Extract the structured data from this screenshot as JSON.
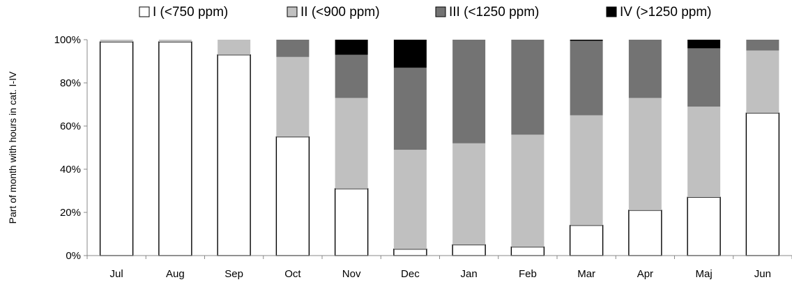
{
  "chart_data": {
    "type": "bar",
    "stacked": true,
    "normalized": true,
    "categories": [
      "Jul",
      "Aug",
      "Sep",
      "Oct",
      "Nov",
      "Dec",
      "Jan",
      "Feb",
      "Mar",
      "Apr",
      "Maj",
      "Jun"
    ],
    "series": [
      {
        "name": "I (<750 ppm)",
        "color": "#ffffff",
        "values": [
          99,
          99,
          93,
          55,
          31,
          3,
          5,
          4,
          14,
          21,
          27,
          66
        ]
      },
      {
        "name": "II (<900 ppm)",
        "color": "#c0c0c0",
        "values": [
          1,
          1,
          7,
          37,
          42,
          46,
          47,
          52,
          51,
          52,
          42,
          29
        ]
      },
      {
        "name": "III (<1250 ppm)",
        "color": "#737373",
        "values": [
          0,
          0,
          0,
          8,
          20,
          38,
          48,
          44,
          34.5,
          27,
          27,
          5
        ]
      },
      {
        "name": "IV (>1250 ppm)",
        "color": "#000000",
        "values": [
          0,
          0,
          0,
          0,
          7,
          13,
          0,
          0,
          0.5,
          0,
          4,
          0
        ]
      }
    ],
    "ylabel": "Part of month  with hours in cat. I-IV",
    "xlabel": "",
    "ylim": [
      0,
      100
    ],
    "yticks": [
      "0%",
      "20%",
      "40%",
      "60%",
      "80%",
      "100%"
    ],
    "grid": false,
    "legend_position": "top"
  }
}
